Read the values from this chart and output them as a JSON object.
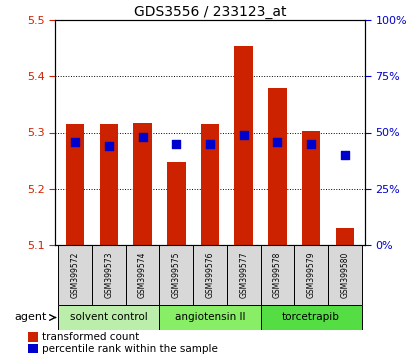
{
  "title": "GDS3556 / 233123_at",
  "samples": [
    "GSM399572",
    "GSM399573",
    "GSM399574",
    "GSM399575",
    "GSM399576",
    "GSM399577",
    "GSM399578",
    "GSM399579",
    "GSM399580"
  ],
  "bar_heights": [
    5.315,
    5.315,
    5.317,
    5.247,
    5.315,
    5.453,
    5.38,
    5.302,
    5.13
  ],
  "base": 5.1,
  "blue_pct": [
    46,
    44,
    48,
    45,
    45,
    49,
    46,
    45,
    40
  ],
  "ylim_left": [
    5.1,
    5.5
  ],
  "ylim_right": [
    0,
    100
  ],
  "yticks_left": [
    5.1,
    5.2,
    5.3,
    5.4,
    5.5
  ],
  "yticks_right": [
    0,
    25,
    50,
    75,
    100
  ],
  "ytick_labels_right": [
    "0%",
    "25%",
    "50%",
    "75%",
    "100%"
  ],
  "bar_color": "#cc2200",
  "blue_color": "#0000cc",
  "groups": [
    {
      "label": "solvent control",
      "indices": [
        0,
        1,
        2
      ],
      "color": "#bbeeaa"
    },
    {
      "label": "angiotensin II",
      "indices": [
        3,
        4,
        5
      ],
      "color": "#88ee66"
    },
    {
      "label": "torcetrapib",
      "indices": [
        6,
        7,
        8
      ],
      "color": "#55dd44"
    }
  ],
  "legend_red": "transformed count",
  "legend_blue": "percentile rank within the sample",
  "tick_label_color_left": "#cc2200",
  "tick_label_color_right": "#0000cc",
  "bar_width": 0.55,
  "blue_dot_size": 40
}
